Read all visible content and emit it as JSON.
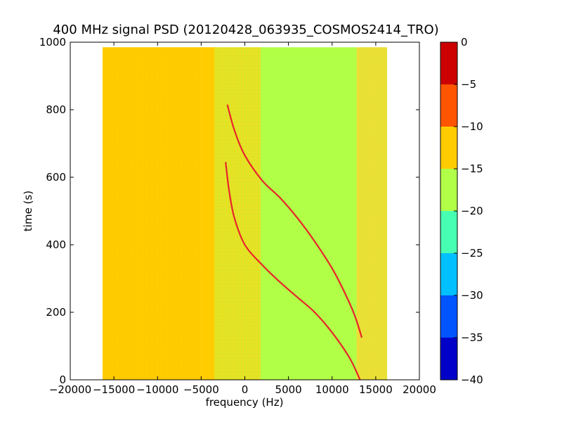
{
  "chart_data": {
    "type": "heatmap",
    "title": "400 MHz signal PSD (20120428_063935_COSMOS2414_TRO)",
    "xlabel": "frequency (Hz)",
    "ylabel": "time (s)",
    "xlim": [
      -20000,
      20000
    ],
    "ylim": [
      0,
      1000
    ],
    "x_ticks": [
      "−20000",
      "−15000",
      "−10000",
      "−5000",
      "0",
      "5000",
      "10000",
      "15000",
      "20000"
    ],
    "x_tick_values": [
      -20000,
      -15000,
      -10000,
      -5000,
      0,
      5000,
      10000,
      15000,
      20000
    ],
    "y_ticks": [
      "0",
      "200",
      "400",
      "600",
      "800",
      "1000"
    ],
    "y_tick_values": [
      0,
      200,
      400,
      600,
      800,
      1000
    ],
    "data_extent": {
      "x": [
        -16300,
        16300
      ],
      "y": [
        0,
        985
      ]
    },
    "background_bands": [
      {
        "x": [
          -16300,
          -5000
        ],
        "level": -12.5,
        "color": "#ffcc00"
      },
      {
        "x": [
          -5000,
          -3500
        ],
        "level": -13.5,
        "color": "#ffcc00"
      },
      {
        "x": [
          -3500,
          1800
        ],
        "level": -15.5,
        "color": "#dfe62a"
      },
      {
        "x": [
          1800,
          12800
        ],
        "level": -17.5,
        "color": "#b2ff47"
      },
      {
        "x": [
          12800,
          16300
        ],
        "level": -15.5,
        "color": "#e8e034"
      }
    ],
    "series": [
      {
        "color": "#e8252a",
        "points": [
          [
            -2000,
            815
          ],
          [
            -1200,
            740
          ],
          [
            0,
            665
          ],
          [
            2000,
            590
          ],
          [
            4000,
            540
          ],
          [
            6000,
            480
          ],
          [
            8000,
            410
          ],
          [
            10000,
            330
          ],
          [
            11500,
            255
          ],
          [
            12600,
            190
          ],
          [
            13400,
            125
          ]
        ]
      },
      {
        "color": "#e8252a",
        "points": [
          [
            -2200,
            645
          ],
          [
            -1800,
            560
          ],
          [
            -1200,
            480
          ],
          [
            0,
            400
          ],
          [
            2000,
            340
          ],
          [
            4000,
            290
          ],
          [
            6000,
            245
          ],
          [
            8000,
            200
          ],
          [
            10000,
            140
          ],
          [
            12000,
            65
          ],
          [
            13200,
            0
          ]
        ]
      }
    ],
    "colorbar": {
      "ticks": [
        "0",
        "−5",
        "−10",
        "−15",
        "−20",
        "−25",
        "−30",
        "−35",
        "−40"
      ],
      "tick_values": [
        0,
        -5,
        -10,
        -15,
        -20,
        -25,
        -30,
        -35,
        -40
      ],
      "segments": [
        {
          "range": [
            -5,
            0
          ],
          "color": "#cc0000"
        },
        {
          "range": [
            -10,
            -5
          ],
          "color": "#ff5500"
        },
        {
          "range": [
            -15,
            -10
          ],
          "color": "#ffcc00"
        },
        {
          "range": [
            -20,
            -15
          ],
          "color": "#b2ff47"
        },
        {
          "range": [
            -25,
            -20
          ],
          "color": "#47ffb2"
        },
        {
          "range": [
            -30,
            -25
          ],
          "color": "#00c0ff"
        },
        {
          "range": [
            -35,
            -30
          ],
          "color": "#0055ff"
        },
        {
          "range": [
            -40,
            -35
          ],
          "color": "#0000c8"
        }
      ]
    }
  }
}
